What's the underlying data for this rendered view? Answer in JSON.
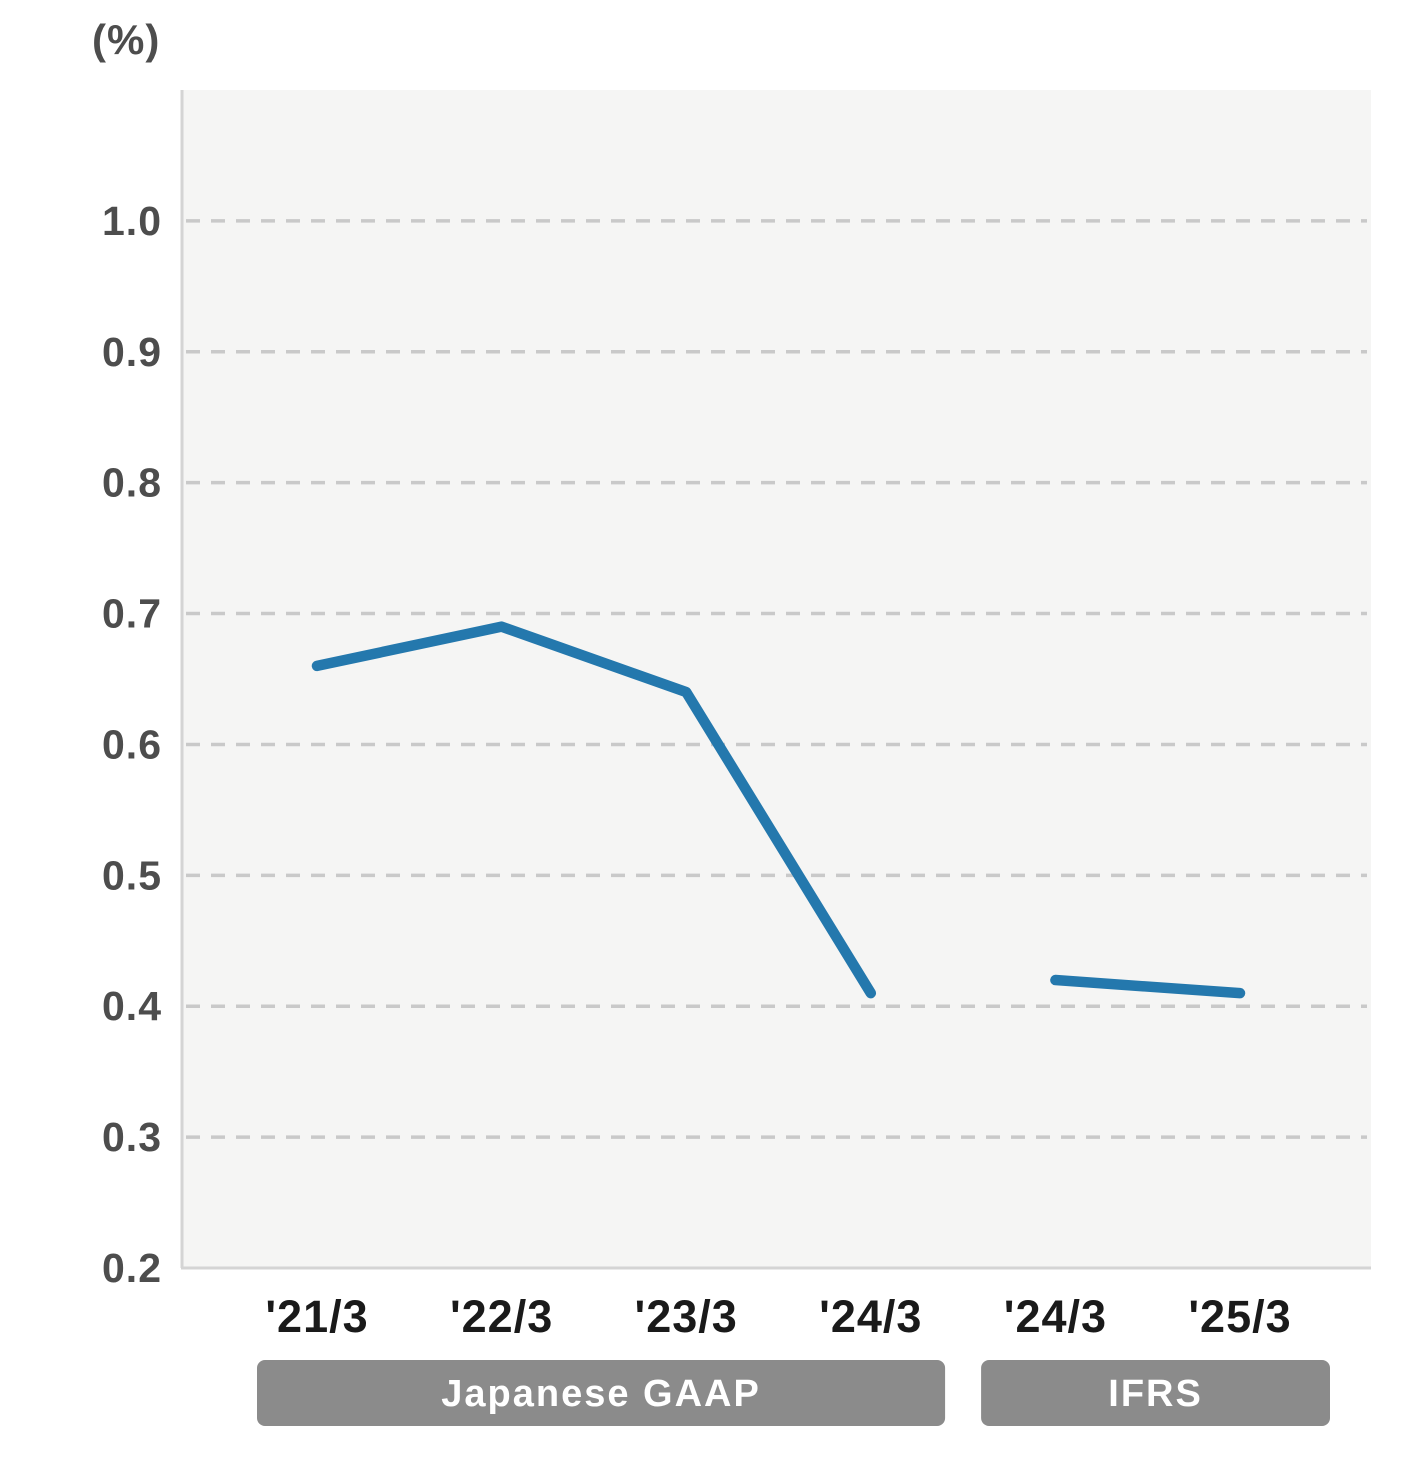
{
  "unit_label": "(%)",
  "chart_data": {
    "type": "line",
    "title": "",
    "ylabel": "(%)",
    "xlabel": "",
    "categories": [
      "'21/3",
      "'22/3",
      "'23/3",
      "'24/3",
      "'24/3",
      "'25/3"
    ],
    "y_ticks": [
      1.0,
      0.9,
      0.8,
      0.7,
      0.6,
      0.5,
      0.4,
      0.3,
      0.2
    ],
    "y_tick_labels": [
      "1.0",
      "0.9",
      "0.8",
      "0.7",
      "0.6",
      "0.5",
      "0.4",
      "0.3",
      "0.2"
    ],
    "ylim": [
      0.2,
      1.1
    ],
    "grid": "horizontal-dashed",
    "legend_position": "none",
    "series": [
      {
        "name": "Japanese GAAP",
        "x_indices": [
          0,
          1,
          2,
          3
        ],
        "values": [
          0.66,
          0.69,
          0.64,
          0.41
        ]
      },
      {
        "name": "IFRS",
        "x_indices": [
          4,
          5
        ],
        "values": [
          0.42,
          0.41
        ]
      }
    ],
    "groups": [
      {
        "label": "Japanese GAAP",
        "start_index": 0,
        "end_index": 3
      },
      {
        "label": "IFRS",
        "start_index": 4,
        "end_index": 5
      }
    ],
    "colors": {
      "line": "#2478ad",
      "plot_bg": "#f5f5f4",
      "grid": "#c9c9c9",
      "axis_border": "#d4d4d4",
      "y_tick": "#4d4d4d",
      "x_tick": "#1a1a1a",
      "band_bg": "#8b8b8b",
      "band_text": "#ffffff"
    }
  }
}
